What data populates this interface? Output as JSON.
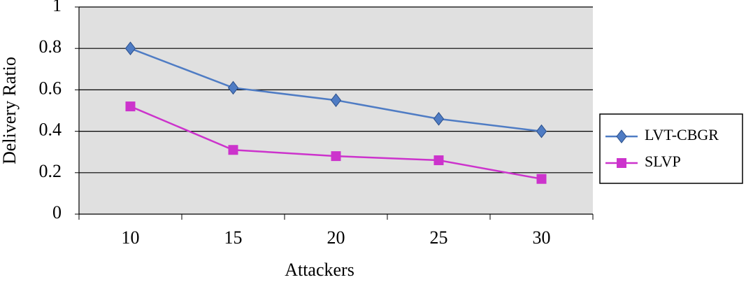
{
  "chart_data": {
    "type": "line",
    "categories": [
      "10",
      "15",
      "20",
      "25",
      "30"
    ],
    "series": [
      {
        "name": "LVT-CBGR",
        "color": "#4f7cc4",
        "marker": "diamond",
        "values": [
          0.8,
          0.61,
          0.55,
          0.46,
          0.4
        ]
      },
      {
        "name": "SLVP",
        "color": "#cc33cc",
        "marker": "square",
        "values": [
          0.52,
          0.31,
          0.28,
          0.26,
          0.17
        ]
      }
    ],
    "ylim": [
      0,
      1
    ],
    "yticks": [
      0,
      0.2,
      0.4,
      0.6,
      0.8,
      1
    ],
    "grid": true,
    "x_label": "Attackers",
    "y_label": "Delivery Ratio",
    "legend": "right"
  }
}
